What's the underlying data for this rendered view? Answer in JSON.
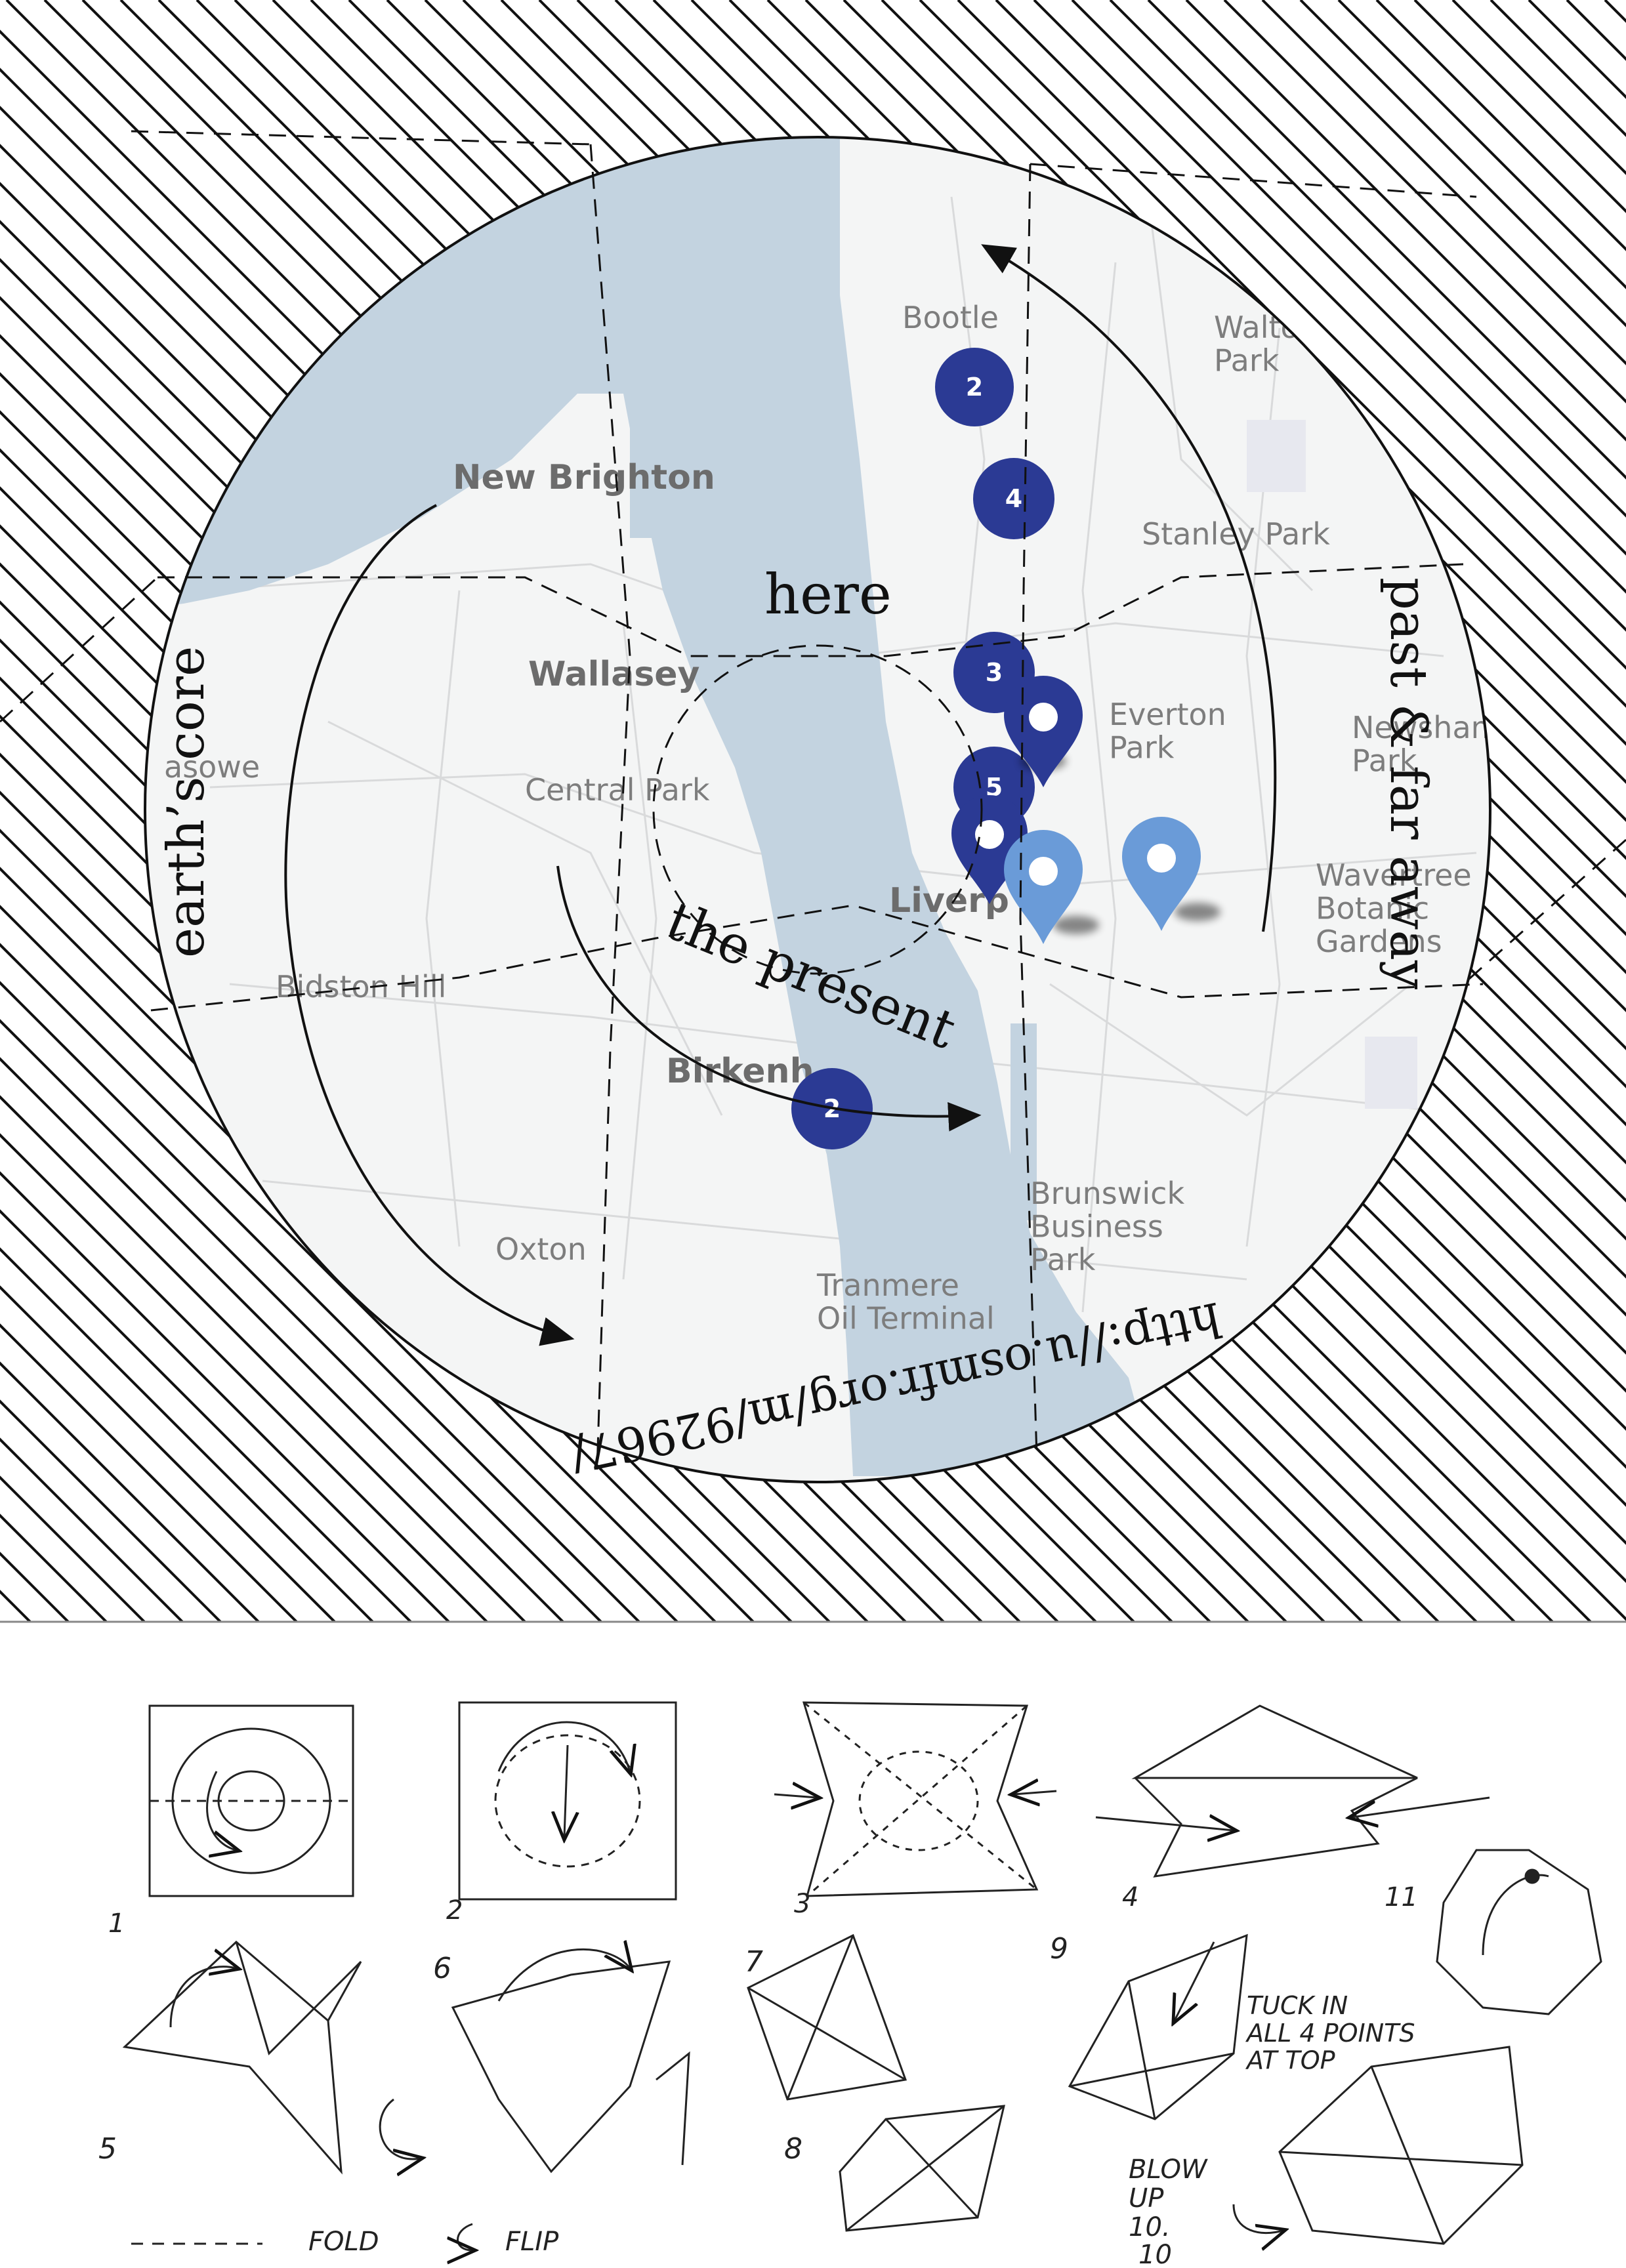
{
  "map": {
    "places": {
      "bootle": "Bootle",
      "walton_park": "Walto\nPark",
      "new_brighton": "New Brighton",
      "stanley_park": "Stanley Park",
      "wallasey": "Wallasey",
      "everton_park": "Everton\nPark",
      "newsham_park": "Newsham\nPark",
      "moreton": "asowe",
      "central_park": "Central Park",
      "liverpool": "Liverp",
      "wavertree": "Wavertree\nBotanic\nGardens",
      "bidston_hill": "Bidston Hill",
      "birkenhead": "Birkenh",
      "brunswick": "Brunswick\nBusiness\nPark",
      "oxton": "Oxton",
      "tranmere": "Tranmere\nOil Terminal"
    },
    "clusters": [
      {
        "label": "2"
      },
      {
        "label": "4"
      },
      {
        "label": "3"
      },
      {
        "label": "5"
      },
      {
        "label": "2"
      }
    ],
    "colors": {
      "water": "#c3d3e0",
      "land": "#f4f5f5",
      "cluster": "#2b3a94",
      "pin_light": "#6a9bd8",
      "ink": "#111111"
    }
  },
  "annotations": {
    "here": "here",
    "the_present": "the present",
    "earths_core": "earth’s core",
    "past_far_away": "past & far away",
    "url": "http://u.osmfr.org/m/92967/"
  },
  "instructions": {
    "step_numbers": [
      "1",
      "2",
      "3",
      "4",
      "5",
      "6",
      "7",
      "8",
      "9",
      "10",
      "11"
    ],
    "note_9": "TUCK IN\nALL 4 POINTS\nAT TOP",
    "note_10": "BLOW\nUP\n10.",
    "legend_fold": "FOLD",
    "legend_flip": "FLIP"
  }
}
